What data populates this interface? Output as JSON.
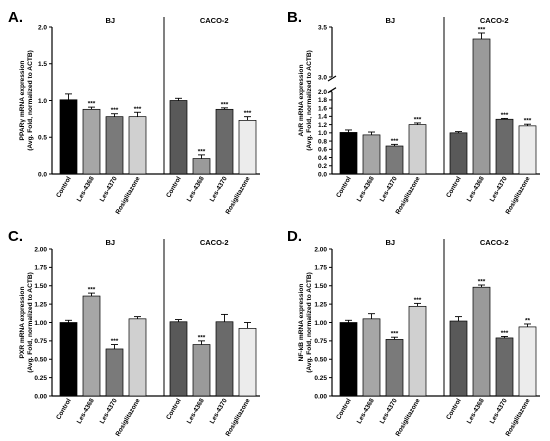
{
  "chart_data": [
    {
      "type": "bar",
      "panel": "A.",
      "groups": [
        "BJ",
        "CACO-2"
      ],
      "categories": [
        "Control",
        "Les-4368",
        "Les-4370",
        "Rosiglitazone",
        "Control",
        "Les-4368",
        "Les-4370",
        "Rosiglitazone"
      ],
      "values": [
        1.01,
        0.88,
        0.78,
        0.78,
        1.0,
        0.21,
        0.88,
        0.73
      ],
      "errors": [
        0.08,
        0.03,
        0.04,
        0.06,
        0.03,
        0.05,
        0.02,
        0.05
      ],
      "significance": [
        "",
        "***",
        "***",
        "***",
        "",
        "***",
        "***",
        "***"
      ],
      "ylabel_line1": "PPARγ  mRNA expression",
      "ylabel_line2": "(Avg. Fold, normalized to ACTB)",
      "ylim": [
        0,
        2.0
      ],
      "yticks": [
        "0.0",
        "0.5",
        "1.0",
        "1.5",
        "2.0"
      ]
    },
    {
      "type": "bar",
      "panel": "B.",
      "groups": [
        "BJ",
        "CACO-2"
      ],
      "categories": [
        "Control",
        "Les-4368",
        "Les-4370",
        "Rosiglitazone",
        "Control",
        "Les-4368",
        "Les-4370",
        "Rosiglitazone"
      ],
      "values": [
        1.01,
        0.95,
        0.68,
        1.2,
        1.0,
        3.38,
        1.33,
        1.17
      ],
      "errors": [
        0.06,
        0.07,
        0.04,
        0.04,
        0.03,
        0.06,
        0.02,
        0.04
      ],
      "significance": [
        "",
        "",
        "***",
        "***",
        "",
        "***",
        "***",
        "***"
      ],
      "ylabel_line1": "AhR mRNA expression",
      "ylabel_line2": "(Avg. Fold, normalized to ACTB)",
      "ylim": [
        0,
        3.5
      ],
      "axis_break": [
        2.0,
        3.0
      ],
      "yticks": [
        "0.0",
        "0.2",
        "0.4",
        "0.6",
        "0.8",
        "1.0",
        "1.2",
        "1.4",
        "1.6",
        "1.8",
        "2.0",
        "3.0",
        "3.5"
      ]
    },
    {
      "type": "bar",
      "panel": "C.",
      "groups": [
        "BJ",
        "CACO-2"
      ],
      "categories": [
        "Control",
        "Les-4368",
        "Les-4370",
        "Rosiglitazone",
        "Control",
        "Les-4368",
        "Les-4370",
        "Rosiglitazone"
      ],
      "values": [
        1.0,
        1.36,
        0.64,
        1.05,
        1.01,
        0.7,
        1.01,
        0.92
      ],
      "errors": [
        0.03,
        0.04,
        0.06,
        0.03,
        0.03,
        0.05,
        0.1,
        0.08
      ],
      "significance": [
        "",
        "***",
        "***",
        "",
        "",
        "***",
        "",
        ""
      ],
      "ylabel_line1": "PXR mRNA expression",
      "ylabel_line2": "(Avg. Fold, normalized to ACTB)",
      "ylim": [
        0,
        2.0
      ],
      "yticks": [
        "0.00",
        "0.25",
        "0.50",
        "0.75",
        "1.00",
        "1.25",
        "1.50",
        "1.75",
        "2.00"
      ]
    },
    {
      "type": "bar",
      "panel": "D.",
      "groups": [
        "BJ",
        "CACO-2"
      ],
      "categories": [
        "Control",
        "Les-4368",
        "Les-4370",
        "Rosiglitazone",
        "Control",
        "Les-4368",
        "Les-4370",
        "Rosiglitazone"
      ],
      "values": [
        1.0,
        1.05,
        0.77,
        1.22,
        1.02,
        1.48,
        0.79,
        0.94
      ],
      "errors": [
        0.03,
        0.07,
        0.03,
        0.04,
        0.06,
        0.03,
        0.02,
        0.04
      ],
      "significance": [
        "",
        "",
        "***",
        "***",
        "",
        "***",
        "***",
        "**"
      ],
      "ylabel_line1": "NF-kB mRNA expression",
      "ylabel_line2": "(Avg. Fold, normalized to ACTB)",
      "ylim": [
        0,
        2.0
      ],
      "yticks": [
        "0.00",
        "0.25",
        "0.50",
        "0.75",
        "1.00",
        "1.25",
        "1.50",
        "1.75",
        "2.00"
      ]
    }
  ],
  "colors": {
    "bj": [
      "#000000",
      "#a6a6a6",
      "#7a7a7a",
      "#d0d0d0"
    ],
    "caco": [
      "#595959",
      "#9a9a9a",
      "#6a6a6a",
      "#ececec"
    ]
  }
}
